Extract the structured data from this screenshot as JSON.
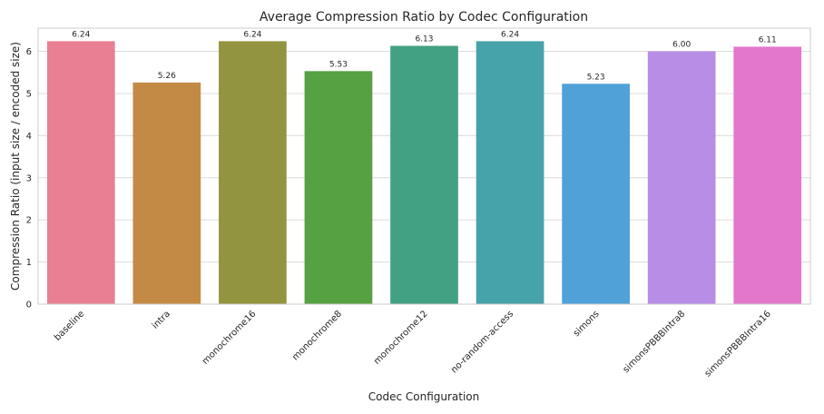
{
  "chart_data": {
    "type": "bar",
    "title": "Average Compression Ratio by Codec Configuration",
    "xlabel": "Codec Configuration",
    "ylabel": "Compression Ratio (input size / encoded size)",
    "ylim": [
      0,
      6.55
    ],
    "yticks": [
      0,
      1,
      2,
      3,
      4,
      5,
      6
    ],
    "grid": true,
    "categories": [
      "baseline",
      "intra",
      "monochrome16",
      "monochrome8",
      "monochrome12",
      "no-random-access",
      "simons",
      "simonsPBBBIntra8",
      "simonsPBBBIntra16"
    ],
    "values": [
      6.24,
      5.26,
      6.24,
      5.53,
      6.13,
      6.24,
      5.23,
      6.0,
      6.11
    ],
    "value_labels": [
      "6.24",
      "5.26",
      "6.24",
      "5.53",
      "6.13",
      "6.24",
      "5.23",
      "6.00",
      "6.11"
    ],
    "colors": [
      "#e87f93",
      "#c38a45",
      "#93943f",
      "#56a141",
      "#43a183",
      "#46a3a9",
      "#51a1d9",
      "#b88de6",
      "#e277cc"
    ]
  }
}
